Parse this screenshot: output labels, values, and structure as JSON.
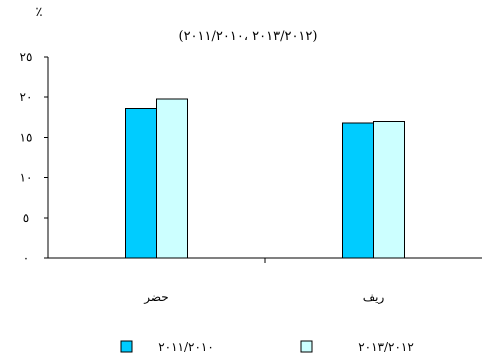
{
  "chart_data": {
    "type": "bar",
    "title": "(٢٠١٣/٢٠١٢ ،٢٠١١/٢٠١٠)",
    "ylabel": "٪",
    "xlabel": "",
    "categories": [
      "حضر",
      "ريف"
    ],
    "series": [
      {
        "name": "٢٠١١/٢٠١٠",
        "values": [
          18.6,
          16.8
        ],
        "color": "#00ccff"
      },
      {
        "name": "٢٠١٣/٢٠١٢",
        "values": [
          19.8,
          17.0
        ],
        "color": "#ccffff"
      }
    ],
    "ylim": [
      0,
      25
    ],
    "y_ticks": [
      0,
      5,
      10,
      15,
      20,
      25
    ],
    "y_tick_labels": [
      "٠",
      "٥",
      "١٠",
      "١٥",
      "٢٠",
      "٢٥"
    ],
    "grid": false,
    "legend_position": "bottom"
  }
}
